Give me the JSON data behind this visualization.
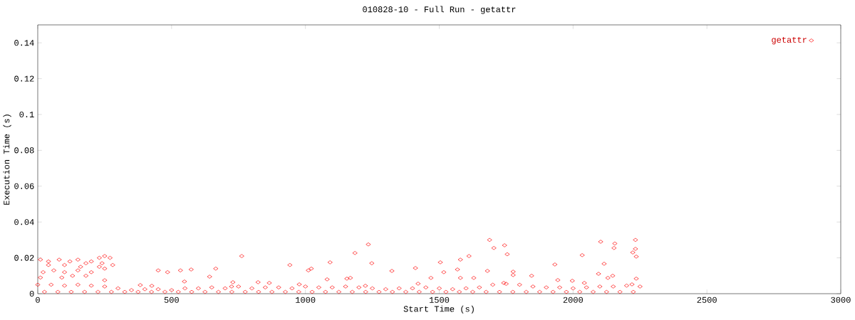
{
  "chart_data": {
    "type": "scatter",
    "title": "010828-10 - Full Run - getattr",
    "xlabel": "Start Time (s)",
    "ylabel": "Execution Time (s)",
    "xlim": [
      0,
      3000
    ],
    "ylim": [
      0,
      0.15
    ],
    "xticks": [
      0,
      500,
      1000,
      1500,
      2000,
      2500,
      3000
    ],
    "yticks": [
      0,
      0.02,
      0.04,
      0.06,
      0.08,
      0.1,
      0.12,
      0.14
    ],
    "grid": false,
    "legend": "top right",
    "marker": "diamond",
    "series": [
      {
        "name": "getattr",
        "color": "#ff0000",
        "x": [
          10,
          40,
          80,
          120,
          150,
          180,
          200,
          230,
          250,
          270,
          100,
          160,
          240,
          280,
          20,
          60,
          100,
          150,
          200,
          250,
          10,
          90,
          130,
          180,
          40,
          230,
          250,
          450,
          485,
          533,
          573,
          665,
          642,
          762,
          942,
          1022,
          1011,
          1092,
          1081,
          1155,
          823,
          865,
          729,
          548,
          383,
          426,
          724,
          977,
          1688,
          1235,
          1185,
          1744,
          1704,
          1754,
          1248,
          1504,
          1579,
          1611,
          1323,
          1411,
          1517,
          1568,
          1680,
          1168,
          1469,
          1579,
          1629,
          1776,
          1776,
          1845,
          1421,
          2233,
          2103,
          2156,
          2153,
          2034,
          2233,
          2223,
          2236,
          1932,
          2116,
          2095,
          2148,
          2130,
          1943,
          1997,
          2042,
          2236,
          2220,
          1741,
          1224,
          0,
          50,
          100,
          150,
          200,
          250,
          300,
          350,
          400,
          450,
          500,
          550,
          600,
          650,
          700,
          750,
          800,
          850,
          900,
          950,
          1000,
          1050,
          1100,
          1150,
          1200,
          1250,
          1300,
          1350,
          1400,
          1450,
          1500,
          1550,
          1600,
          1650,
          1700,
          1750,
          1800,
          1850,
          1900,
          1950,
          2000,
          2050,
          2100,
          2150,
          2200,
          2250,
          25,
          75,
          125,
          175,
          225,
          275,
          325,
          375,
          425,
          475,
          525,
          575,
          625,
          675,
          725,
          775,
          825,
          875,
          925,
          975,
          1025,
          1075,
          1125,
          1175,
          1225,
          1275,
          1325,
          1375,
          1425,
          1475,
          1525,
          1575,
          1625,
          1675,
          1725,
          1775,
          1825,
          1875,
          1925,
          1975,
          2025,
          2075,
          2125,
          2175,
          2225
        ],
        "values": [
          0.019,
          0.018,
          0.019,
          0.018,
          0.019,
          0.017,
          0.018,
          0.02,
          0.021,
          0.02,
          0.016,
          0.015,
          0.017,
          0.016,
          0.012,
          0.013,
          0.012,
          0.013,
          0.012,
          0.014,
          0.009,
          0.009,
          0.01,
          0.01,
          0.016,
          0.015,
          0.0075,
          0.013,
          0.012,
          0.013,
          0.0135,
          0.014,
          0.0095,
          0.021,
          0.016,
          0.014,
          0.013,
          0.0175,
          0.008,
          0.0084,
          0.0064,
          0.006,
          0.0064,
          0.0068,
          0.0048,
          0.0044,
          0.004,
          0.0052,
          0.03,
          0.0275,
          0.0227,
          0.027,
          0.0255,
          0.022,
          0.017,
          0.0175,
          0.019,
          0.021,
          0.0127,
          0.0143,
          0.012,
          0.0135,
          0.0127,
          0.0088,
          0.0088,
          0.0088,
          0.0088,
          0.0123,
          0.0104,
          0.01,
          0.0056,
          0.03,
          0.029,
          0.028,
          0.0255,
          0.0215,
          0.025,
          0.023,
          0.0207,
          0.0163,
          0.0167,
          0.0111,
          0.01,
          0.0088,
          0.0076,
          0.0072,
          0.006,
          0.0084,
          0.0052,
          0.006,
          0.0044,
          0.005,
          0.005,
          0.0045,
          0.005,
          0.0045,
          0.004,
          0.003,
          0.002,
          0.0025,
          0.0025,
          0.002,
          0.003,
          0.003,
          0.0035,
          0.003,
          0.004,
          0.003,
          0.0035,
          0.0035,
          0.003,
          0.004,
          0.0035,
          0.0035,
          0.004,
          0.0035,
          0.003,
          0.0025,
          0.003,
          0.003,
          0.0035,
          0.003,
          0.0025,
          0.003,
          0.0035,
          0.005,
          0.0055,
          0.005,
          0.004,
          0.0035,
          0.0035,
          0.003,
          0.0035,
          0.004,
          0.004,
          0.0045,
          0.004,
          0.001,
          0.001,
          0.001,
          0.001,
          0.001,
          0.001,
          0.001,
          0.001,
          0.001,
          0.001,
          0.001,
          0.001,
          0.001,
          0.001,
          0.001,
          0.001,
          0.001,
          0.001,
          0.001,
          0.001,
          0.001,
          0.001,
          0.001,
          0.001,
          0.001,
          0.001,
          0.001,
          0.001,
          0.001,
          0.001,
          0.001,
          0.001,
          0.001,
          0.001,
          0.001,
          0.001,
          0.001,
          0.001,
          0.001,
          0.001,
          0.001,
          0.001,
          0.001,
          0.001,
          0.001
        ]
      }
    ]
  }
}
